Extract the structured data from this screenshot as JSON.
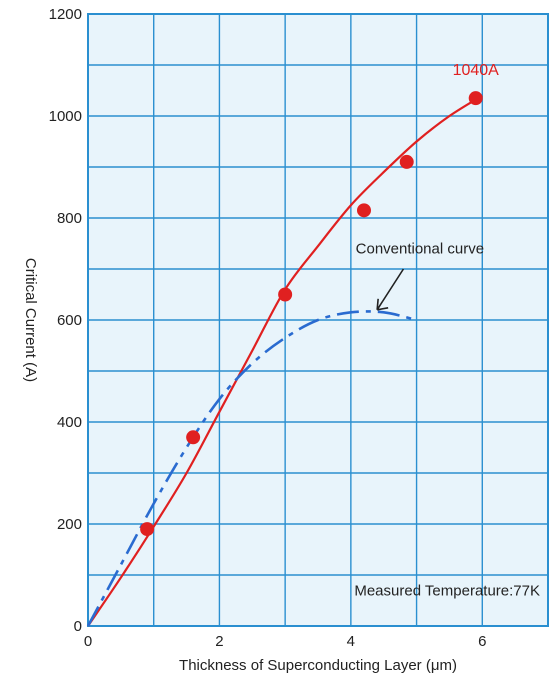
{
  "chart_data": {
    "type": "line",
    "xlabel": "Thickness of Superconducting Layer (μm)",
    "ylabel": "Critical Current (A)",
    "xlim": [
      0,
      7
    ],
    "ylim": [
      0,
      1200
    ],
    "x_ticks": [
      "0",
      "2",
      "4",
      "6"
    ],
    "y_ticks": [
      "0",
      "200",
      "400",
      "600",
      "800",
      "1000",
      "1200"
    ],
    "grid": true,
    "background": "#e8f4fb",
    "grid_color": "#2a8fd0",
    "series": [
      {
        "kind": "scatter",
        "color": "#e02020",
        "x": [
          0.9,
          1.6,
          3.0,
          4.2,
          4.85,
          5.9
        ],
        "y": [
          190,
          370,
          650,
          815,
          910,
          1035
        ]
      },
      {
        "kind": "fit-line",
        "color": "#e02020",
        "x": [
          0,
          0.5,
          1.0,
          1.5,
          2.0,
          2.5,
          3.0,
          3.5,
          4.0,
          4.5,
          5.0,
          5.5,
          6.0
        ],
        "y": [
          0,
          95,
          195,
          300,
          420,
          540,
          660,
          745,
          825,
          890,
          950,
          1000,
          1040
        ]
      },
      {
        "kind": "dashed-line",
        "color": "#2a6bd0",
        "x": [
          0,
          0.5,
          1.0,
          1.5,
          2.0,
          2.5,
          3.0,
          3.5,
          4.0,
          4.5,
          5.0
        ],
        "y": [
          0,
          120,
          240,
          350,
          445,
          515,
          565,
          600,
          615,
          615,
          600
        ]
      }
    ],
    "annotations": {
      "value_label": "1040A",
      "curve_label": "Conventional curve",
      "footnote": "Measured Temperature:77K"
    }
  }
}
